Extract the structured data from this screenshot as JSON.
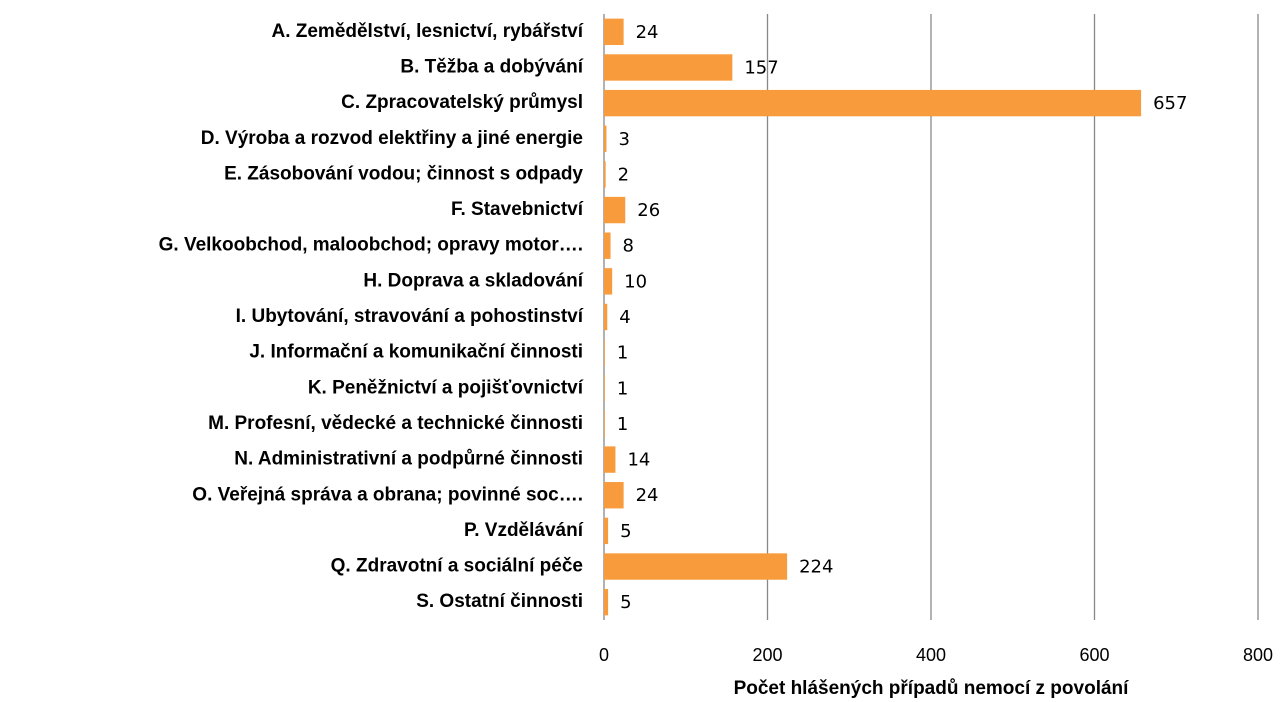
{
  "chart_data": {
    "type": "bar",
    "orientation": "horizontal",
    "x_label": "Počet hlášených případů nemocí z povolání",
    "categories": [
      "A. Zemědělství, lesnictví, rybářství",
      "B. Těžba a dobývání",
      "C. Zpracovatelský průmysl",
      "D. Výroba a rozvod elektřiny a jiné energie",
      "E. Zásobování vodou; činnost s odpady",
      "F. Stavebnictví",
      "G. Velkoobchod, maloobchod; opravy motor….",
      "H. Doprava a skladování",
      "I. Ubytování, stravování a pohostinství",
      "J. Informační a komunikační činnosti",
      "K. Peněžnictví a pojišťovnictví",
      "M. Profesní, vědecké a technické činnosti",
      "N. Administrativní a podpůrné činnosti",
      "O. Veřejná správa a obrana; povinné soc….",
      "P. Vzdělávání",
      "Q. Zdravotní a sociální péče",
      "S. Ostatní činnosti"
    ],
    "values": [
      24,
      157,
      657,
      3,
      2,
      26,
      8,
      10,
      4,
      1,
      1,
      1,
      14,
      24,
      5,
      224,
      5
    ],
    "color": "#f79b3c",
    "xlim": [
      0,
      800
    ],
    "xticks": [
      0,
      200,
      400,
      600,
      800
    ],
    "grid": true
  }
}
